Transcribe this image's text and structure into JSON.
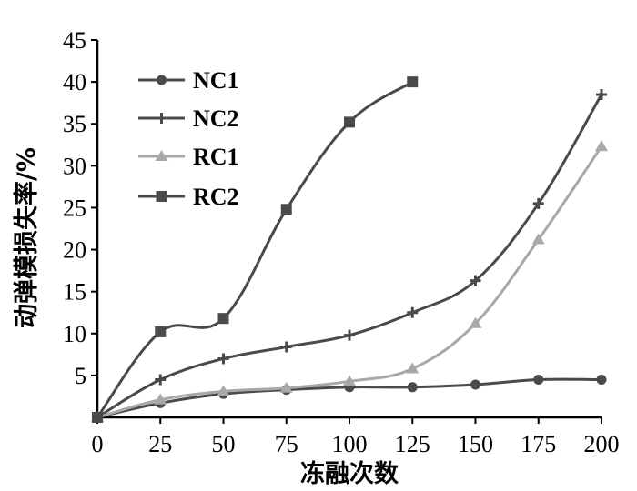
{
  "chart_data": {
    "type": "line",
    "title": "",
    "xlabel": "冻融次数",
    "ylabel": "动弹模损失率/%",
    "xlim": [
      0,
      200
    ],
    "ylim": [
      0,
      45
    ],
    "x_ticks": [
      0,
      25,
      50,
      75,
      100,
      125,
      150,
      175,
      200
    ],
    "y_ticks": [
      5,
      10,
      15,
      20,
      25,
      30,
      35,
      40,
      45
    ],
    "grid": false,
    "legend_position": "top-left",
    "series": [
      {
        "name": "NC1",
        "color": "#4a4a4a",
        "marker": "circle",
        "x": [
          0,
          25,
          50,
          75,
          100,
          125,
          150,
          175,
          200
        ],
        "y": [
          0,
          1.7,
          2.8,
          3.3,
          3.6,
          3.6,
          3.9,
          4.5,
          4.5
        ]
      },
      {
        "name": "NC2",
        "color": "#4a4a4a",
        "marker": "plus",
        "x": [
          0,
          25,
          50,
          75,
          100,
          125,
          150,
          175,
          200
        ],
        "y": [
          0,
          4.5,
          7.0,
          8.4,
          9.8,
          12.5,
          16.3,
          25.5,
          38.5
        ]
      },
      {
        "name": "RC1",
        "color": "#a8a8a8",
        "marker": "triangle",
        "x": [
          0,
          25,
          50,
          75,
          100,
          125,
          150,
          175,
          200
        ],
        "y": [
          0,
          2.1,
          3.1,
          3.5,
          4.3,
          5.8,
          11.2,
          21.2,
          32.3
        ]
      },
      {
        "name": "RC2",
        "color": "#4a4a4a",
        "marker": "square",
        "x": [
          0,
          25,
          50,
          75,
          100,
          125
        ],
        "y": [
          0,
          10.2,
          11.8,
          24.8,
          35.2,
          40.0
        ]
      }
    ]
  }
}
